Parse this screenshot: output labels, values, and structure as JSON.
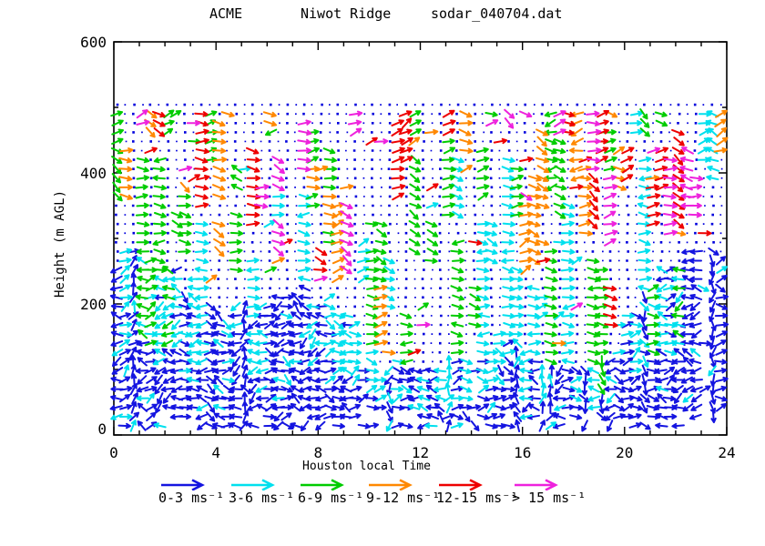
{
  "chart_data": {
    "type": "quiver",
    "title": {
      "left": "ACME",
      "center": "Niwot Ridge",
      "right": "sodar_040704.dat"
    },
    "xlabel": "Houston local Time",
    "ylabel": "Height (m AGL)",
    "xlim": [
      0,
      24
    ],
    "ylim": [
      0,
      600
    ],
    "xticks": {
      "major": [
        0,
        4,
        8,
        12,
        16,
        20,
        24
      ],
      "minor_step": 1
    },
    "yticks": {
      "major": [
        0,
        200,
        400,
        600
      ],
      "minor": [
        100,
        300,
        500
      ]
    },
    "grid": {
      "time_start": 0.12,
      "time_step_hours": 0.3333,
      "n_cols": 72,
      "height_start_m": 14,
      "height_step_m": 14,
      "n_rows": 36,
      "max_height_m": 504
    },
    "speed_classes": [
      {
        "label": "0-3",
        "unit": "ms⁻¹",
        "color": "#1414e0"
      },
      {
        "label": "3-6",
        "unit": "ms⁻¹",
        "color": "#00e0ee"
      },
      {
        "label": "6-9",
        "unit": "ms⁻¹",
        "color": "#00cc00"
      },
      {
        "label": "9-12",
        "unit": "ms⁻¹",
        "color": "#ff8800"
      },
      {
        "label": "12-15",
        "unit": "ms⁻¹",
        "color": "#ee0000"
      },
      {
        "label": "> 15",
        "unit": "ms⁻¹",
        "color": "#ee22dd"
      }
    ],
    "missing_dot_color": "#0000dd",
    "axis_color": "#000000",
    "field": {
      "seed": 40704,
      "description": "Sodar wind vectors every ~20 min and ~14 m up to ~500 m AGL: dense 0-6 ms-1 (blue/cyan) winds below a 100-300 m boundary layer, tall cyan/green columns reaching 300-430 m midday, scattered 6->15 ms-1 (green/orange/red/magenta) streaks aloft, and small blue dots marking grid points without arrows.",
      "boundary_layer_m": {
        "min": 100,
        "max": 300
      },
      "dense_region_classes": [
        "0-3",
        "3-6",
        "6-9"
      ],
      "upper_region_classes": [
        "3-6",
        "6-9",
        "9-12",
        "12-15",
        "> 15"
      ]
    }
  }
}
